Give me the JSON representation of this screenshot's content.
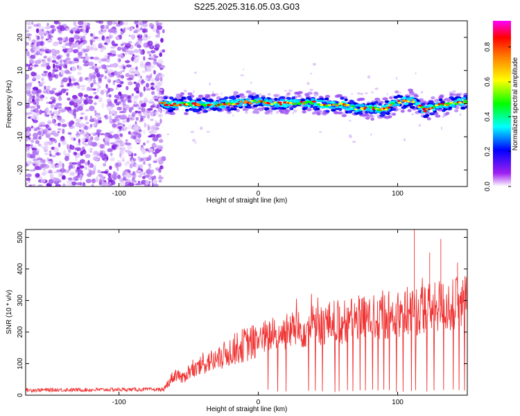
{
  "title": "S225.2025.316.05.03.G03",
  "chart_data": [
    {
      "type": "heatmap",
      "xlabel": "Height of straight line (km)",
      "ylabel": "Frequency (Hz)",
      "xlim": [
        -167,
        150
      ],
      "ylim": [
        -25,
        25
      ],
      "xticks": [
        -100,
        0,
        100
      ],
      "xtick_labels": [
        "-100",
        "0",
        "100"
      ],
      "yticks": [
        -20,
        -10,
        0,
        10,
        20
      ],
      "ytick_labels": [
        "-20",
        "-10",
        "0",
        "10",
        "20"
      ],
      "noise_region_x": [
        -167,
        -68
      ],
      "signal_track": {
        "x": [
          -70,
          -60,
          -50,
          -40,
          -30,
          -20,
          -10,
          0,
          10,
          20,
          30,
          40,
          50,
          60,
          70,
          80,
          90,
          100,
          110,
          120,
          130,
          140,
          150
        ],
        "freq_hz": [
          0.0,
          -0.3,
          0.0,
          -0.5,
          -0.3,
          0.0,
          0.5,
          0.5,
          0.2,
          0.0,
          0.2,
          0.3,
          -0.4,
          -0.2,
          -1.5,
          -1.4,
          -1.8,
          0.5,
          1.0,
          -2.0,
          -0.5,
          0.0,
          0.8
        ]
      },
      "colorbar": {
        "label": "Normalized spectral amplitude",
        "range": [
          0.0,
          0.95
        ],
        "ticks": [
          0.0,
          0.2,
          0.4,
          0.6,
          0.8
        ],
        "tick_labels": [
          "0.0",
          "0.2",
          "0.4",
          "0.6",
          "0.8"
        ],
        "colors": [
          "#ffffff",
          "#a020f0",
          "#0000ff",
          "#00ffff",
          "#00ff00",
          "#ffff00",
          "#ff8000",
          "#ff0000",
          "#ff00ff"
        ]
      }
    },
    {
      "type": "line",
      "xlabel": "Height of straight line (km)",
      "ylabel": "SNR (10 * v/v)",
      "xlim": [
        -167,
        150
      ],
      "ylim": [
        0,
        525
      ],
      "xticks": [
        -100,
        0,
        100
      ],
      "xtick_labels": [
        "-100",
        "0",
        "100"
      ],
      "yticks": [
        0,
        100,
        200,
        300,
        400,
        500
      ],
      "ytick_labels": [
        "0",
        "100",
        "200",
        "300",
        "400",
        "500"
      ],
      "color": "#f03232",
      "series": [
        {
          "name": "SNR",
          "x": [
            -167,
            -140,
            -120,
            -100,
            -80,
            -68,
            -62,
            -58,
            -55,
            -50,
            -45,
            -40,
            -35,
            -30,
            -25,
            -20,
            -15,
            -10,
            -5,
            0,
            5,
            10,
            15,
            20,
            25,
            30,
            35,
            40,
            45,
            50,
            55,
            60,
            65,
            70,
            75,
            80,
            85,
            90,
            95,
            100,
            105,
            110,
            115,
            120,
            125,
            130,
            135,
            140,
            145,
            150
          ],
          "y": [
            16,
            17,
            17,
            18,
            18,
            18,
            55,
            70,
            50,
            75,
            80,
            95,
            110,
            105,
            125,
            140,
            150,
            160,
            165,
            175,
            185,
            190,
            195,
            200,
            210,
            205,
            215,
            225,
            220,
            230,
            235,
            228,
            240,
            238,
            250,
            245,
            255,
            250,
            260,
            262,
            258,
            275,
            265,
            280,
            270,
            285,
            275,
            290,
            280,
            300
          ]
        }
      ],
      "dropouts_x": [
        7,
        14,
        20,
        36,
        41,
        46,
        55,
        58,
        64,
        68,
        73,
        77,
        82,
        86,
        90,
        94,
        99,
        104,
        110,
        113,
        121,
        126,
        133,
        140,
        144,
        148
      ]
    }
  ]
}
